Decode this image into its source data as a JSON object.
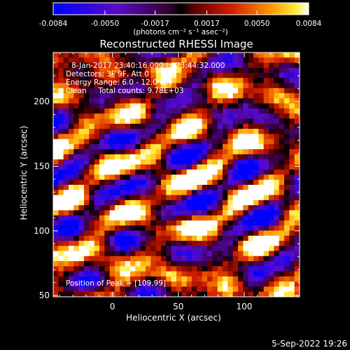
{
  "chart_data": {
    "type": "heatmap",
    "title": "Reconstructed RHESSI Image",
    "xlabel": "Heliocentric X (arcsec)",
    "ylabel": "Heliocentric Y (arcsec)",
    "xlim": [
      -45,
      142
    ],
    "ylim": [
      49,
      238
    ],
    "x_ticks": [
      0,
      50,
      100
    ],
    "y_ticks": [
      50,
      100,
      150,
      200
    ],
    "colorbar": {
      "range": [
        -0.0084,
        0.0084
      ],
      "tick_values": [
        -0.0084,
        -0.005,
        -0.0017,
        0.0017,
        0.005,
        0.0084
      ],
      "tick_labels": [
        "-0.0084",
        "-0.0050",
        "-0.0017",
        "0.0017",
        "0.0050",
        "0.0084"
      ],
      "unit_label": "(photons cm⁻² s⁻¹ asec⁻²)",
      "colormap": "rhessi-signed (blue-purple negative, red-yellow-white positive)"
    },
    "annotations": [
      "8-Jan-2017 23:40:16.000 to 23:44:32.000",
      "Detectors: 3F 9F, Att 0",
      "Energy Range: 6.0 - 12.0 keV",
      "Clean     Total counts: 9.78E+03"
    ],
    "peak_label": "Position of Peak = [109,99]",
    "peak_position": [
      109,
      99
    ]
  },
  "footer": {
    "date": "5-Sep-2022 19:26"
  }
}
